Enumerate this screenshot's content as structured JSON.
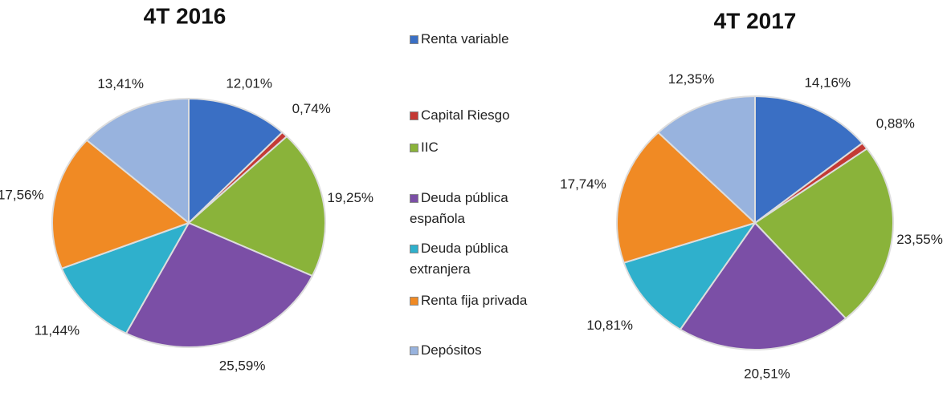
{
  "legend": {
    "categories": [
      "Renta variable",
      "Capital Riesgo",
      "IIC",
      "Deuda pública española",
      "Deuda pública extranjera",
      "Renta fija privada",
      "Depósitos"
    ],
    "colors": [
      "#3a6fc4",
      "#c43a35",
      "#8ab33a",
      "#7b4fa6",
      "#2fb0cc",
      "#f08a24",
      "#98b3de"
    ]
  },
  "chart_data": [
    {
      "type": "pie",
      "title": "4T 2016",
      "values": [
        12.01,
        0.74,
        19.25,
        25.59,
        11.44,
        17.56,
        13.41
      ],
      "value_labels": [
        "12,01%",
        "0,74%",
        "19,25%",
        "25,59%",
        "11,44%",
        "17,56%",
        "13,41%"
      ]
    },
    {
      "type": "pie",
      "title": "4T 2017",
      "values": [
        14.16,
        0.88,
        23.55,
        20.51,
        10.81,
        17.74,
        12.35
      ],
      "value_labels": [
        "14,16%",
        "0,88%",
        "23,55%",
        "20,51%",
        "10,81%",
        "17,74%",
        "12,35%"
      ]
    }
  ]
}
